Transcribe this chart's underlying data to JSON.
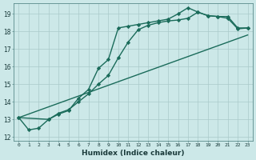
{
  "title": "",
  "xlabel": "Humidex (Indice chaleur)",
  "background_color": "#cce8e8",
  "grid_color": "#aacaca",
  "line_color": "#1a6b5a",
  "xlim": [
    -0.5,
    23.5
  ],
  "ylim": [
    11.8,
    19.6
  ],
  "yticks": [
    12,
    13,
    14,
    15,
    16,
    17,
    18,
    19
  ],
  "xticks": [
    0,
    1,
    2,
    3,
    4,
    5,
    6,
    7,
    8,
    9,
    10,
    11,
    12,
    13,
    14,
    15,
    16,
    17,
    18,
    19,
    20,
    21,
    22,
    23
  ],
  "series": [
    {
      "x": [
        0,
        1,
        2,
        3,
        4,
        5,
        6,
        7,
        8,
        9,
        10,
        11,
        12,
        13,
        14,
        15,
        16,
        17,
        18,
        19,
        20,
        21,
        22,
        23
      ],
      "y": [
        13.1,
        12.4,
        12.5,
        13.0,
        13.3,
        13.5,
        14.2,
        14.7,
        15.9,
        16.4,
        18.2,
        18.3,
        18.4,
        18.5,
        18.6,
        18.7,
        19.0,
        19.35,
        19.1,
        18.9,
        18.85,
        18.85,
        18.2,
        18.2
      ],
      "marker": "D",
      "markersize": 2.2,
      "linewidth": 1.0
    },
    {
      "x": [
        0,
        3,
        4,
        5,
        6,
        7,
        8,
        9,
        10,
        11,
        12,
        13,
        14,
        15,
        16,
        17,
        18,
        19,
        20,
        21,
        22,
        23
      ],
      "y": [
        13.1,
        13.0,
        13.35,
        13.55,
        14.0,
        14.45,
        15.0,
        15.5,
        16.5,
        17.4,
        18.1,
        18.35,
        18.5,
        18.6,
        18.65,
        18.75,
        19.1,
        18.9,
        18.85,
        18.75,
        18.15,
        18.2
      ],
      "marker": "D",
      "markersize": 2.2,
      "linewidth": 1.0
    },
    {
      "x": [
        0,
        23
      ],
      "y": [
        13.1,
        17.8
      ],
      "marker": null,
      "markersize": 0,
      "linewidth": 1.0
    }
  ]
}
